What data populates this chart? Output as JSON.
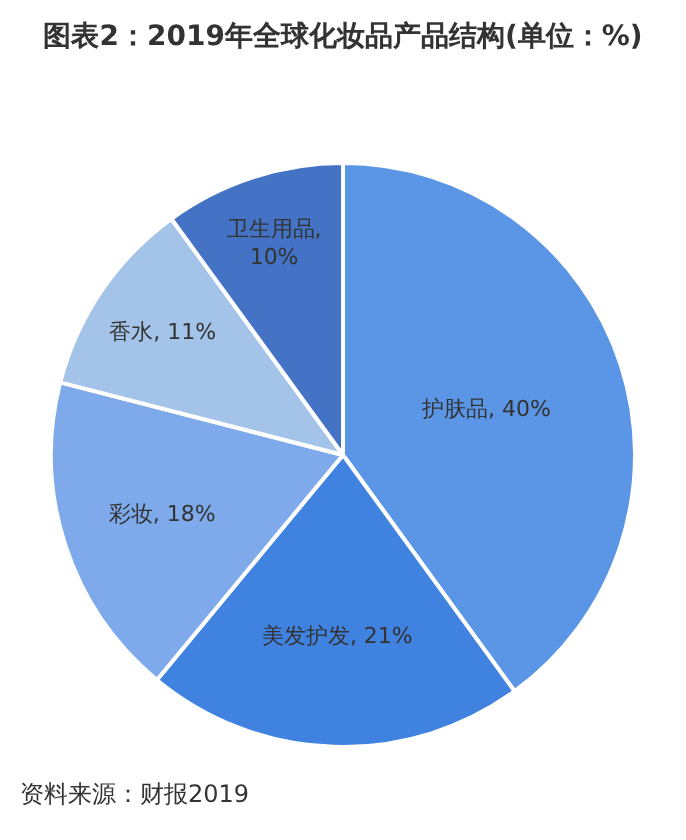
{
  "chart_data": {
    "type": "pie",
    "title": "图表2：2019年全球化妆品产品结构(单位：%)",
    "categories": [
      "护肤品",
      "美发护发",
      "彩妆",
      "香水",
      "卫生用品"
    ],
    "values": [
      40,
      21,
      18,
      11,
      10
    ],
    "value_labels": [
      ", 40%",
      ", 21%",
      ", 18%",
      ", 11%",
      ", 10%"
    ],
    "colors": [
      "#5b95e5",
      "#3f82e0",
      "#7eaaeb",
      "#a4c3e8",
      "#4472c4"
    ],
    "annotations": [
      "资料来源：财报2019"
    ],
    "legend": false
  }
}
